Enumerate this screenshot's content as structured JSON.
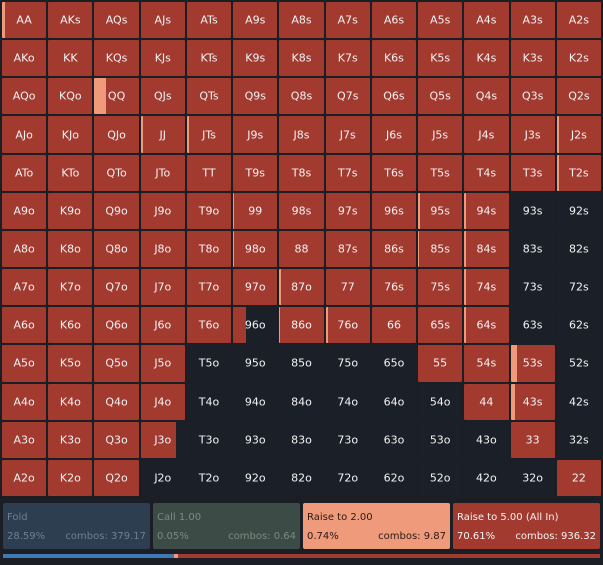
{
  "colors": {
    "fold": "#3f79b5",
    "call": "#4b6b52",
    "raise_small": "#ee9a7b",
    "raise_allin": "#a33a30",
    "empty": "#1b1f27"
  },
  "grid": {
    "rows": [
      [
        {
          "hand": "AA",
          "raise_small": 0.06,
          "dark": false
        },
        {
          "hand": "AKs",
          "raise_small": 0,
          "dark": false
        },
        {
          "hand": "AQs",
          "raise_small": 0,
          "dark": false
        },
        {
          "hand": "AJs",
          "raise_small": 0,
          "dark": false
        },
        {
          "hand": "ATs",
          "raise_small": 0,
          "dark": false
        },
        {
          "hand": "A9s",
          "raise_small": 0,
          "dark": false
        },
        {
          "hand": "A8s",
          "raise_small": 0,
          "dark": false
        },
        {
          "hand": "A7s",
          "raise_small": 0,
          "dark": false
        },
        {
          "hand": "A6s",
          "raise_small": 0,
          "dark": false
        },
        {
          "hand": "A5s",
          "raise_small": 0,
          "dark": false
        },
        {
          "hand": "A4s",
          "raise_small": 0,
          "dark": false
        },
        {
          "hand": "A3s",
          "raise_small": 0,
          "dark": false
        },
        {
          "hand": "A2s",
          "raise_small": 0,
          "dark": false
        }
      ],
      [
        {
          "hand": "AKo",
          "raise_small": 0,
          "dark": false
        },
        {
          "hand": "KK",
          "raise_small": 0,
          "dark": false
        },
        {
          "hand": "KQs",
          "raise_small": 0,
          "dark": false
        },
        {
          "hand": "KJs",
          "raise_small": 0,
          "dark": false
        },
        {
          "hand": "KTs",
          "raise_small": 0,
          "dark": false
        },
        {
          "hand": "K9s",
          "raise_small": 0,
          "dark": false
        },
        {
          "hand": "K8s",
          "raise_small": 0,
          "dark": false
        },
        {
          "hand": "K7s",
          "raise_small": 0,
          "dark": false
        },
        {
          "hand": "K6s",
          "raise_small": 0,
          "dark": false
        },
        {
          "hand": "K5s",
          "raise_small": 0,
          "dark": false
        },
        {
          "hand": "K4s",
          "raise_small": 0,
          "dark": false
        },
        {
          "hand": "K3s",
          "raise_small": 0,
          "dark": false
        },
        {
          "hand": "K2s",
          "raise_small": 0,
          "dark": false
        }
      ],
      [
        {
          "hand": "AQo",
          "raise_small": 0,
          "dark": false
        },
        {
          "hand": "KQo",
          "raise_small": 0,
          "dark": false
        },
        {
          "hand": "QQ",
          "raise_small": 0.26,
          "dark": false
        },
        {
          "hand": "QJs",
          "raise_small": 0,
          "dark": false
        },
        {
          "hand": "QTs",
          "raise_small": 0,
          "dark": false
        },
        {
          "hand": "Q9s",
          "raise_small": 0,
          "dark": false
        },
        {
          "hand": "Q8s",
          "raise_small": 0,
          "dark": false
        },
        {
          "hand": "Q7s",
          "raise_small": 0,
          "dark": false
        },
        {
          "hand": "Q6s",
          "raise_small": 0,
          "dark": false
        },
        {
          "hand": "Q5s",
          "raise_small": 0,
          "dark": false
        },
        {
          "hand": "Q4s",
          "raise_small": 0,
          "dark": false
        },
        {
          "hand": "Q3s",
          "raise_small": 0,
          "dark": false
        },
        {
          "hand": "Q2s",
          "raise_small": 0,
          "dark": false
        }
      ],
      [
        {
          "hand": "AJo",
          "raise_small": 0,
          "dark": false
        },
        {
          "hand": "KJo",
          "raise_small": 0,
          "dark": false
        },
        {
          "hand": "QJo",
          "raise_small": 0,
          "dark": false
        },
        {
          "hand": "JJ",
          "raise_small": 0.06,
          "dark": false
        },
        {
          "hand": "JTs",
          "raise_small": 0.04,
          "dark": false
        },
        {
          "hand": "J9s",
          "raise_small": 0,
          "dark": false
        },
        {
          "hand": "J8s",
          "raise_small": 0,
          "dark": false
        },
        {
          "hand": "J7s",
          "raise_small": 0,
          "dark": false
        },
        {
          "hand": "J6s",
          "raise_small": 0,
          "dark": false
        },
        {
          "hand": "J5s",
          "raise_small": 0,
          "dark": false
        },
        {
          "hand": "J4s",
          "raise_small": 0,
          "dark": false
        },
        {
          "hand": "J3s",
          "raise_small": 0,
          "dark": false
        },
        {
          "hand": "J2s",
          "raise_small": 0.06,
          "dark": false
        }
      ],
      [
        {
          "hand": "ATo",
          "raise_small": 0,
          "dark": false
        },
        {
          "hand": "KTo",
          "raise_small": 0,
          "dark": false
        },
        {
          "hand": "QTo",
          "raise_small": 0,
          "dark": false
        },
        {
          "hand": "JTo",
          "raise_small": 0,
          "dark": false
        },
        {
          "hand": "TT",
          "raise_small": 0,
          "dark": false
        },
        {
          "hand": "T9s",
          "raise_small": 0,
          "dark": false
        },
        {
          "hand": "T8s",
          "raise_small": 0,
          "dark": false
        },
        {
          "hand": "T7s",
          "raise_small": 0,
          "dark": false
        },
        {
          "hand": "T6s",
          "raise_small": 0,
          "dark": false
        },
        {
          "hand": "T5s",
          "raise_small": 0,
          "dark": false
        },
        {
          "hand": "T4s",
          "raise_small": 0,
          "dark": false
        },
        {
          "hand": "T3s",
          "raise_small": 0,
          "dark": false
        },
        {
          "hand": "T2s",
          "raise_small": 0.06,
          "dark": false
        }
      ],
      [
        {
          "hand": "A9o",
          "raise_small": 0,
          "dark": false
        },
        {
          "hand": "K9o",
          "raise_small": 0,
          "dark": false
        },
        {
          "hand": "Q9o",
          "raise_small": 0,
          "dark": false
        },
        {
          "hand": "J9o",
          "raise_small": 0,
          "dark": false
        },
        {
          "hand": "T9o",
          "raise_small": 0,
          "dark": false
        },
        {
          "hand": "99",
          "raise_small": 0.02,
          "dark": false
        },
        {
          "hand": "98s",
          "raise_small": 0,
          "dark": false
        },
        {
          "hand": "97s",
          "raise_small": 0,
          "dark": false
        },
        {
          "hand": "96s",
          "raise_small": 0,
          "dark": false
        },
        {
          "hand": "95s",
          "raise_small": 0.04,
          "dark": false
        },
        {
          "hand": "94s",
          "raise_small": 0.04,
          "dark": false
        },
        {
          "hand": "93s",
          "raise_small": 0,
          "dark": true
        },
        {
          "hand": "92s",
          "raise_small": 0,
          "dark": true
        }
      ],
      [
        {
          "hand": "A8o",
          "raise_small": 0,
          "dark": false
        },
        {
          "hand": "K8o",
          "raise_small": 0,
          "dark": false
        },
        {
          "hand": "Q8o",
          "raise_small": 0,
          "dark": false
        },
        {
          "hand": "J8o",
          "raise_small": 0,
          "dark": false
        },
        {
          "hand": "T8o",
          "raise_small": 0,
          "dark": false
        },
        {
          "hand": "98o",
          "raise_small": 0.02,
          "dark": false
        },
        {
          "hand": "88",
          "raise_small": 0,
          "dark": false
        },
        {
          "hand": "87s",
          "raise_small": 0,
          "dark": false
        },
        {
          "hand": "86s",
          "raise_small": 0,
          "dark": false
        },
        {
          "hand": "85s",
          "raise_small": 0.02,
          "dark": false
        },
        {
          "hand": "84s",
          "raise_small": 0.04,
          "dark": false
        },
        {
          "hand": "83s",
          "raise_small": 0,
          "dark": true
        },
        {
          "hand": "82s",
          "raise_small": 0,
          "dark": true
        }
      ],
      [
        {
          "hand": "A7o",
          "raise_small": 0,
          "dark": false
        },
        {
          "hand": "K7o",
          "raise_small": 0,
          "dark": false
        },
        {
          "hand": "Q7o",
          "raise_small": 0,
          "dark": false
        },
        {
          "hand": "J7o",
          "raise_small": 0,
          "dark": false
        },
        {
          "hand": "T7o",
          "raise_small": 0,
          "dark": false
        },
        {
          "hand": "97o",
          "raise_small": 0,
          "dark": false
        },
        {
          "hand": "87o",
          "raise_small": 0.04,
          "dark": false
        },
        {
          "hand": "77",
          "raise_small": 0,
          "dark": false
        },
        {
          "hand": "76s",
          "raise_small": 0,
          "dark": false
        },
        {
          "hand": "75s",
          "raise_small": 0,
          "dark": false
        },
        {
          "hand": "74s",
          "raise_small": 0.04,
          "dark": false
        },
        {
          "hand": "73s",
          "raise_small": 0,
          "dark": true
        },
        {
          "hand": "72s",
          "raise_small": 0,
          "dark": true
        }
      ],
      [
        {
          "hand": "A6o",
          "raise_small": 0,
          "dark": false
        },
        {
          "hand": "K6o",
          "raise_small": 0,
          "dark": false
        },
        {
          "hand": "Q6o",
          "raise_small": 0,
          "dark": false
        },
        {
          "hand": "J6o",
          "raise_small": 0,
          "dark": false
        },
        {
          "hand": "T6o",
          "raise_small": 0,
          "dark": false
        },
        {
          "hand": "96o",
          "raise_small": 0.28,
          "dark": true
        },
        {
          "hand": "86o",
          "raise_small": 0.02,
          "dark": false
        },
        {
          "hand": "76o",
          "raise_small": 0.06,
          "dark": false
        },
        {
          "hand": "66",
          "raise_small": 0,
          "dark": false
        },
        {
          "hand": "65s",
          "raise_small": 0,
          "dark": false
        },
        {
          "hand": "64s",
          "raise_small": 0.04,
          "dark": false
        },
        {
          "hand": "63s",
          "raise_small": 0,
          "dark": true
        },
        {
          "hand": "62s",
          "raise_small": 0,
          "dark": true
        }
      ],
      [
        {
          "hand": "A5o",
          "raise_small": 0,
          "dark": false
        },
        {
          "hand": "K5o",
          "raise_small": 0,
          "dark": false
        },
        {
          "hand": "Q5o",
          "raise_small": 0,
          "dark": false
        },
        {
          "hand": "J5o",
          "raise_small": 0,
          "dark": false
        },
        {
          "hand": "T5o",
          "raise_small": 0,
          "dark": true
        },
        {
          "hand": "95o",
          "raise_small": 0,
          "dark": true
        },
        {
          "hand": "85o",
          "raise_small": 0,
          "dark": true
        },
        {
          "hand": "75o",
          "raise_small": 0,
          "dark": true
        },
        {
          "hand": "65o",
          "raise_small": 0,
          "dark": true
        },
        {
          "hand": "55",
          "raise_small": 0,
          "dark": false
        },
        {
          "hand": "54s",
          "raise_small": 0,
          "dark": false
        },
        {
          "hand": "53s",
          "raise_small": 0.14,
          "dark": false
        },
        {
          "hand": "52s",
          "raise_small": 0,
          "dark": true
        }
      ],
      [
        {
          "hand": "A4o",
          "raise_small": 0,
          "dark": false
        },
        {
          "hand": "K4o",
          "raise_small": 0,
          "dark": false
        },
        {
          "hand": "Q4o",
          "raise_small": 0,
          "dark": false
        },
        {
          "hand": "J4o",
          "raise_small": 0,
          "dark": false
        },
        {
          "hand": "T4o",
          "raise_small": 0,
          "dark": true
        },
        {
          "hand": "94o",
          "raise_small": 0,
          "dark": true
        },
        {
          "hand": "84o",
          "raise_small": 0,
          "dark": true
        },
        {
          "hand": "74o",
          "raise_small": 0,
          "dark": true
        },
        {
          "hand": "64o",
          "raise_small": 0,
          "dark": true
        },
        {
          "hand": "54o",
          "raise_small": 0,
          "dark": true
        },
        {
          "hand": "44",
          "raise_small": 0,
          "dark": false
        },
        {
          "hand": "43s",
          "raise_small": 0.1,
          "dark": false
        },
        {
          "hand": "42s",
          "raise_small": 0,
          "dark": true
        }
      ],
      [
        {
          "hand": "A3o",
          "raise_small": 0,
          "dark": false
        },
        {
          "hand": "K3o",
          "raise_small": 0,
          "dark": false
        },
        {
          "hand": "Q3o",
          "raise_small": 0,
          "dark": false
        },
        {
          "hand": "J3o",
          "raise_small": 0.8,
          "dark": true
        },
        {
          "hand": "T3o",
          "raise_small": 0,
          "dark": true
        },
        {
          "hand": "93o",
          "raise_small": 0,
          "dark": true
        },
        {
          "hand": "83o",
          "raise_small": 0,
          "dark": true
        },
        {
          "hand": "73o",
          "raise_small": 0,
          "dark": true
        },
        {
          "hand": "63o",
          "raise_small": 0,
          "dark": true
        },
        {
          "hand": "53o",
          "raise_small": 0,
          "dark": true
        },
        {
          "hand": "43o",
          "raise_small": 0,
          "dark": true
        },
        {
          "hand": "33",
          "raise_small": 0,
          "dark": false
        },
        {
          "hand": "32s",
          "raise_small": 0,
          "dark": true
        }
      ],
      [
        {
          "hand": "A2o",
          "raise_small": 0,
          "dark": false
        },
        {
          "hand": "K2o",
          "raise_small": 0,
          "dark": false
        },
        {
          "hand": "Q2o",
          "raise_small": 0,
          "dark": false
        },
        {
          "hand": "J2o",
          "raise_small": 0,
          "dark": true
        },
        {
          "hand": "T2o",
          "raise_small": 0,
          "dark": true
        },
        {
          "hand": "92o",
          "raise_small": 0,
          "dark": true
        },
        {
          "hand": "82o",
          "raise_small": 0,
          "dark": true
        },
        {
          "hand": "72o",
          "raise_small": 0,
          "dark": true
        },
        {
          "hand": "62o",
          "raise_small": 0,
          "dark": true
        },
        {
          "hand": "52o",
          "raise_small": 0,
          "dark": true
        },
        {
          "hand": "42o",
          "raise_small": 0,
          "dark": true
        },
        {
          "hand": "32o",
          "raise_small": 0,
          "dark": true
        },
        {
          "hand": "22",
          "raise_small": 0,
          "dark": false
        }
      ]
    ]
  },
  "legend": {
    "fold": {
      "title": "Fold",
      "pct": "28.59%",
      "combos": "combos: 379.17"
    },
    "call": {
      "title": "Call 1.00",
      "pct": "0.05%",
      "combos": "combos: 0.64"
    },
    "raise_small": {
      "title": "Raise to 2.00",
      "pct": "0.74%",
      "combos": "combos: 9.87"
    },
    "raise_allin": {
      "title": "Raise to 5.00 (All In)",
      "pct": "70.61%",
      "combos": "combos: 936.32"
    }
  },
  "frequency_bar": {
    "fold": 28.59,
    "call": 0.05,
    "raise_small": 0.74,
    "raise_allin": 70.61
  }
}
